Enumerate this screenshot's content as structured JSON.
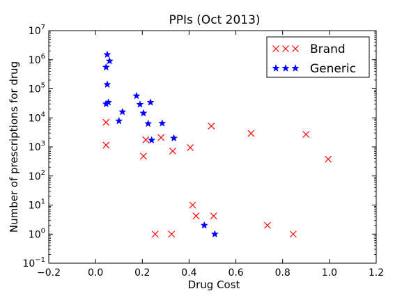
{
  "chart_data": {
    "type": "scatter",
    "title": "PPIs (Oct 2013)",
    "xlabel": "Drug Cost",
    "ylabel": "Number of prescriptions for drug",
    "xlim": [
      -0.2,
      1.2
    ],
    "ylim_log10": [
      -1,
      7
    ],
    "yscale": "log",
    "grid": false,
    "legend_position": "top-right",
    "x_ticks": [
      -0.2,
      0.0,
      0.2,
      0.4,
      0.6,
      0.8,
      1.0,
      1.2
    ],
    "x_tick_labels": [
      "−0.2",
      "0.0",
      "0.2",
      "0.4",
      "0.6",
      "0.8",
      "1.0",
      "1.2"
    ],
    "y_tick_exponents": [
      -1,
      0,
      1,
      2,
      3,
      4,
      5,
      6,
      7
    ],
    "y_tick_base": "10",
    "y_tick_exponent_labels": [
      "−1",
      "0",
      "1",
      "2",
      "3",
      "4",
      "5",
      "6",
      "7"
    ],
    "series": [
      {
        "name": "Brand",
        "marker": "x",
        "color": "#ff0000",
        "points": [
          [
            0.045,
            7000
          ],
          [
            0.045,
            1150
          ],
          [
            0.205,
            480
          ],
          [
            0.215,
            1750
          ],
          [
            0.255,
            1
          ],
          [
            0.28,
            2100
          ],
          [
            0.325,
            1
          ],
          [
            0.33,
            720
          ],
          [
            0.405,
            950
          ],
          [
            0.415,
            10
          ],
          [
            0.43,
            4.2
          ],
          [
            0.495,
            5200
          ],
          [
            0.505,
            4.2
          ],
          [
            0.665,
            2900
          ],
          [
            0.735,
            2
          ],
          [
            0.845,
            1
          ],
          [
            0.9,
            2700
          ],
          [
            0.995,
            380
          ]
        ]
      },
      {
        "name": "Generic",
        "marker": "star",
        "color": "#0000ff",
        "points": [
          [
            0.05,
            1500000
          ],
          [
            0.045,
            550000
          ],
          [
            0.06,
            900000
          ],
          [
            0.05,
            140000
          ],
          [
            0.045,
            30000
          ],
          [
            0.055,
            34000
          ],
          [
            0.1,
            7800
          ],
          [
            0.115,
            16000
          ],
          [
            0.175,
            57000
          ],
          [
            0.19,
            29000
          ],
          [
            0.205,
            14500
          ],
          [
            0.235,
            34000
          ],
          [
            0.225,
            6300
          ],
          [
            0.24,
            1700
          ],
          [
            0.285,
            6500
          ],
          [
            0.335,
            2000
          ],
          [
            0.465,
            2
          ],
          [
            0.51,
            1
          ]
        ]
      }
    ]
  }
}
